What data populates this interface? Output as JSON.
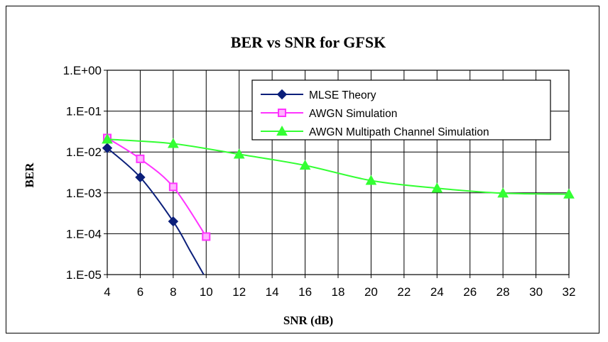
{
  "chart_data": {
    "type": "line",
    "title": "BER vs SNR for GFSK",
    "xlabel": "SNR (dB)",
    "ylabel": "BER",
    "y_scale": "log",
    "xlim": [
      4,
      32
    ],
    "ylim": [
      1e-05,
      1
    ],
    "x_ticks": [
      4,
      6,
      8,
      10,
      12,
      14,
      16,
      18,
      20,
      22,
      24,
      26,
      28,
      30,
      32
    ],
    "x_tick_labels": [
      "4",
      "6",
      "8",
      "10",
      "12",
      "14",
      "16",
      "18",
      "20",
      "22",
      "24",
      "26",
      "28",
      "30",
      "32"
    ],
    "y_ticks": [
      1,
      0.1,
      0.01,
      0.001,
      0.0001,
      1e-05
    ],
    "y_tick_labels": [
      "1.E+00",
      "1.E-01",
      "1.E-02",
      "1.E-03",
      "1.E-04",
      "1.E-05"
    ],
    "grid": true,
    "legend_position": "top-right",
    "series": [
      {
        "name": "MLSE Theory",
        "color": "#0b1f7a",
        "marker": "diamond",
        "markers_x": [
          4,
          6,
          8
        ],
        "markers_y": [
          0.0125,
          0.0024,
          0.0002
        ],
        "curve_x": [
          4,
          6,
          8,
          9,
          9.85
        ],
        "curve_y": [
          0.0125,
          0.0024,
          0.0002,
          4e-05,
          1e-05
        ]
      },
      {
        "name": "AWGN Simulation",
        "color": "#ff33ff",
        "marker": "square",
        "markers_x": [
          4,
          6,
          8,
          10
        ],
        "markers_y": [
          0.022,
          0.0068,
          0.0014,
          8.5e-05
        ],
        "curve_x": [
          4,
          6,
          8,
          10
        ],
        "curve_y": [
          0.022,
          0.0068,
          0.0014,
          8.5e-05
        ]
      },
      {
        "name": "AWGN Multipath Channel Simulation",
        "color": "#33ff33",
        "marker": "triangle",
        "markers_x": [
          4,
          8,
          12,
          16,
          20,
          24,
          28,
          32
        ],
        "markers_y": [
          0.0205,
          0.016,
          0.0088,
          0.0047,
          0.002,
          0.0013,
          0.00098,
          0.00093
        ],
        "curve_x": [
          4,
          8,
          12,
          16,
          20,
          24,
          28,
          32
        ],
        "curve_y": [
          0.0205,
          0.016,
          0.0088,
          0.0047,
          0.002,
          0.0013,
          0.00098,
          0.00093
        ]
      }
    ]
  }
}
